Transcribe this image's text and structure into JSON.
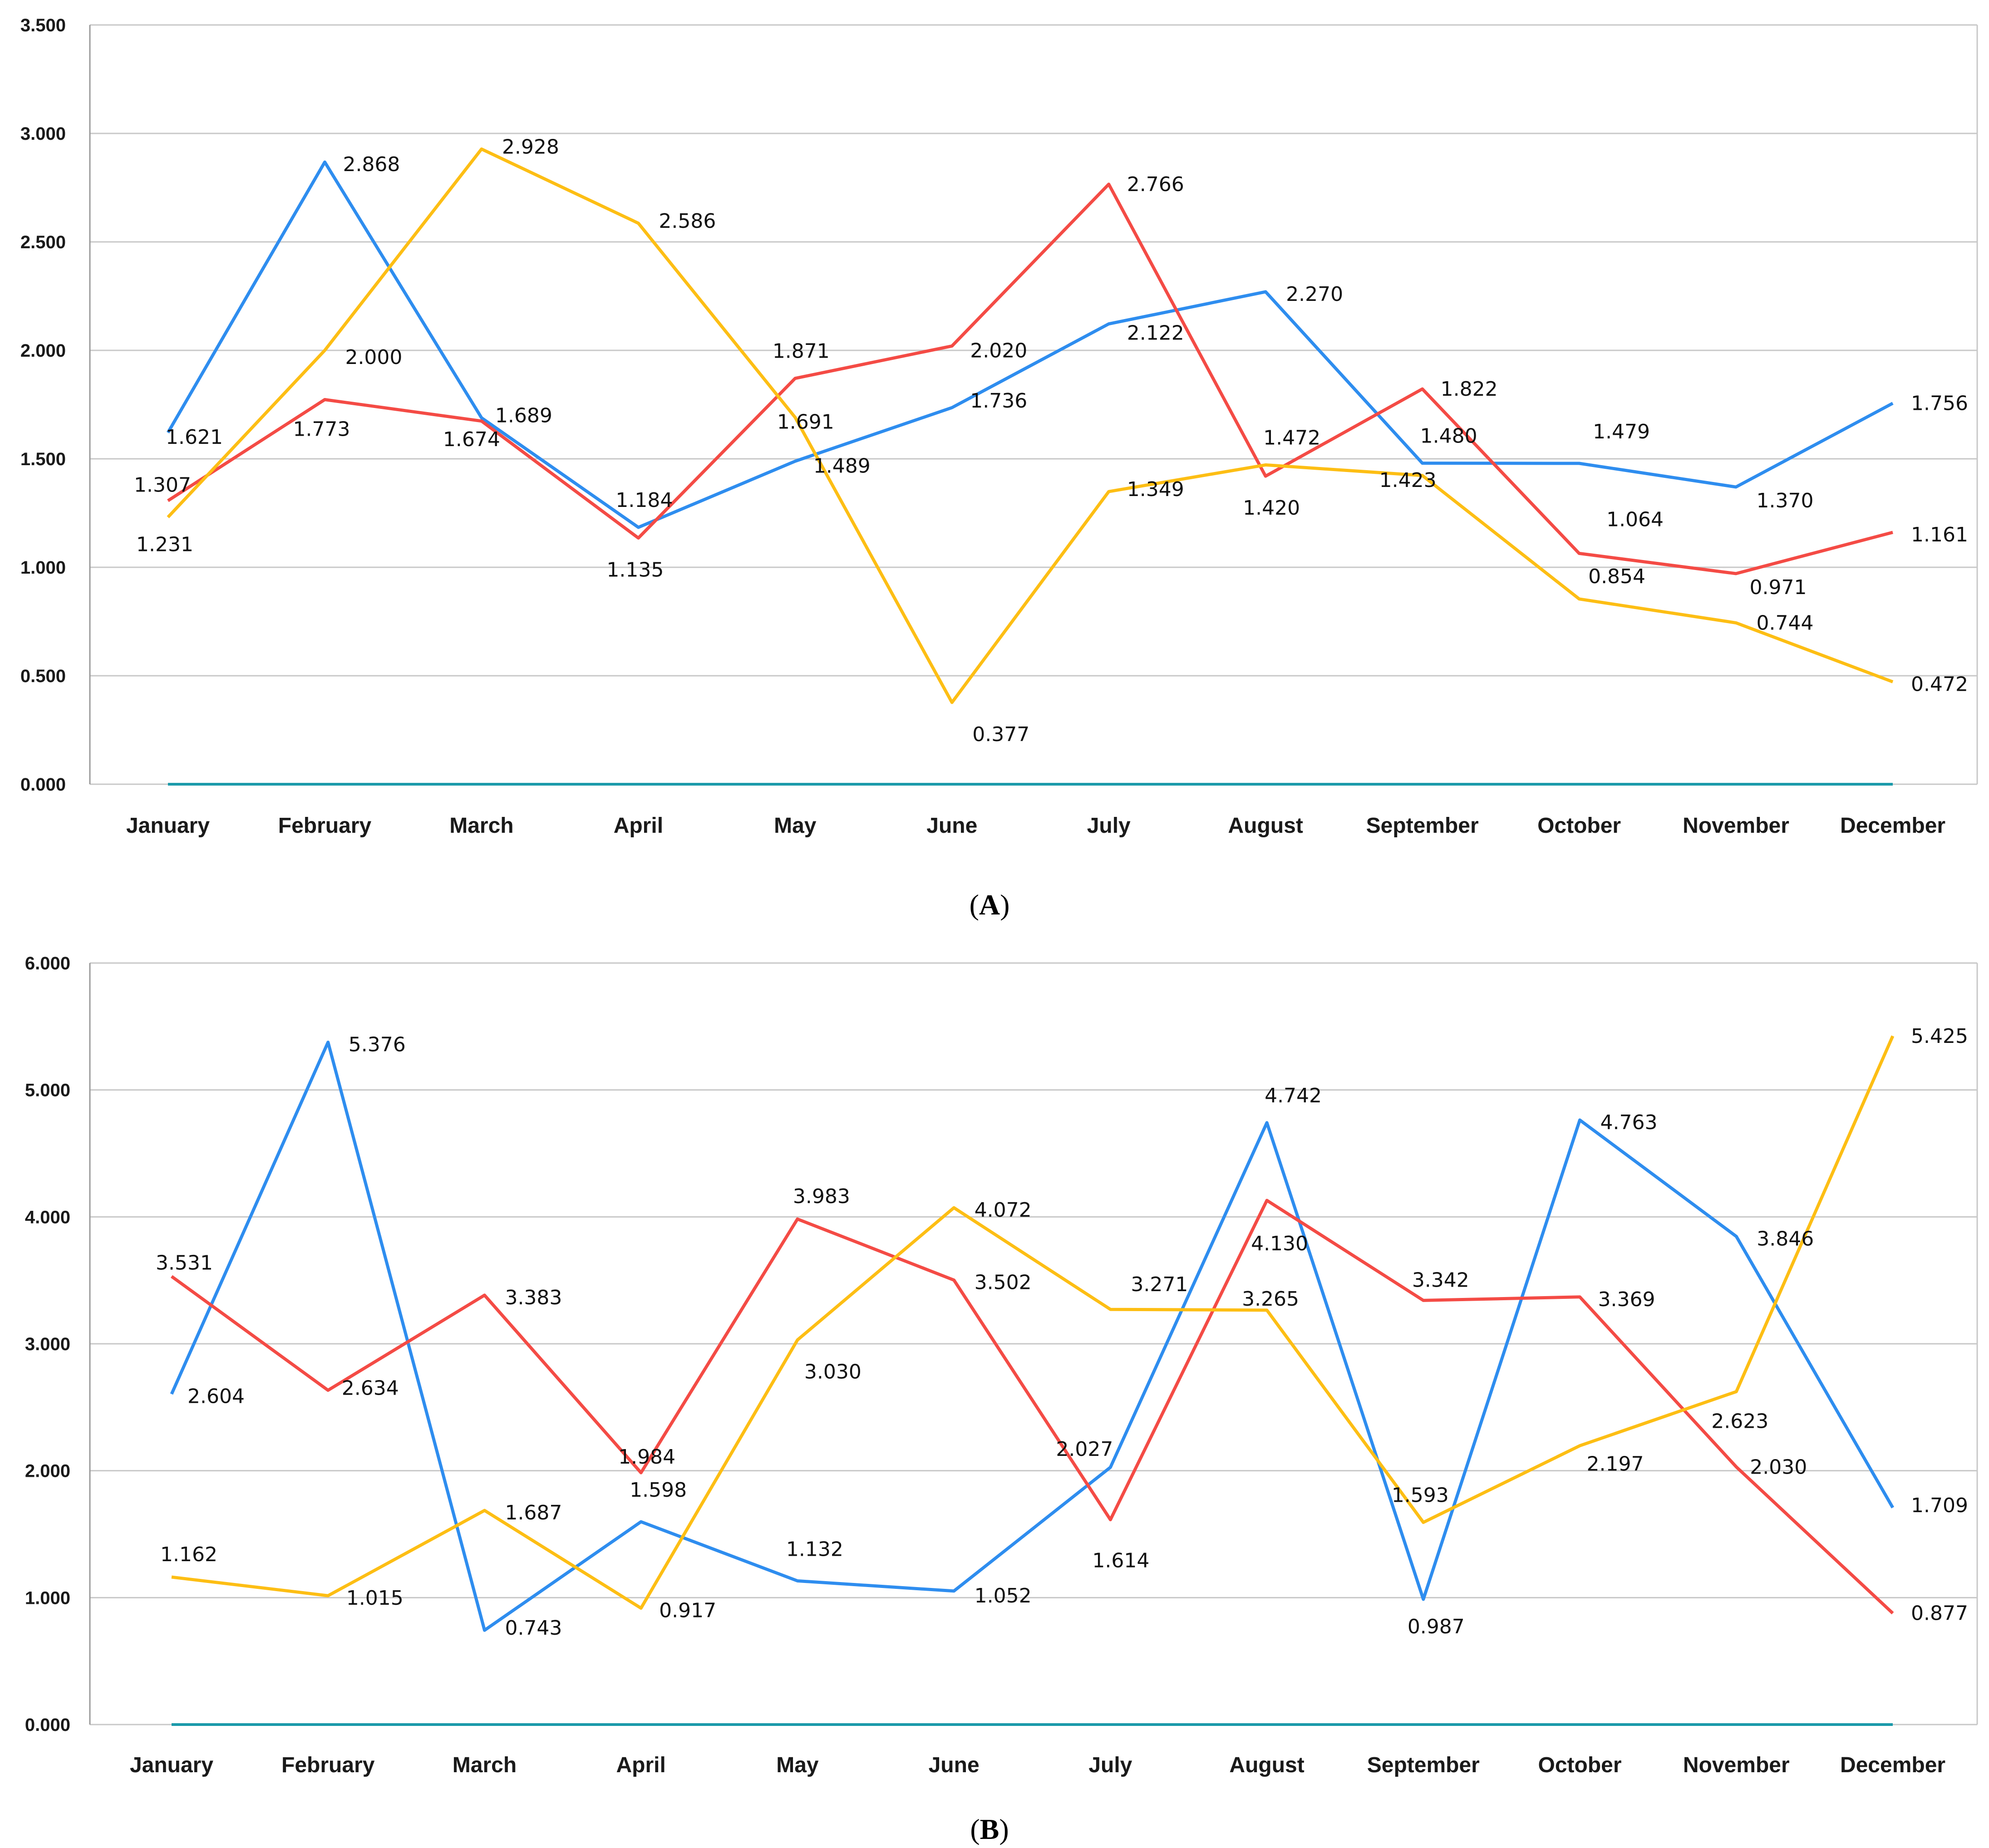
{
  "colors": {
    "blue": "#2E8DEF",
    "red": "#F44B45",
    "yellow": "#FDBE14",
    "baseline": "#1B9AAA",
    "grid": "#C8C8C8",
    "axis": "#9A9A9A"
  },
  "chart_data": [
    {
      "type": "line",
      "panel_label": "A",
      "categories": [
        "January",
        "February",
        "March",
        "April",
        "May",
        "June",
        "July",
        "August",
        "September",
        "October",
        "November",
        "December"
      ],
      "ylim": [
        0,
        3.5
      ],
      "yticks": [
        "0.000",
        "0.500",
        "1.000",
        "1.500",
        "2.000",
        "2.500",
        "3.000",
        "3.500"
      ],
      "grid": true,
      "series": [
        {
          "color_key": "blue",
          "values": [
            1.621,
            2.868,
            1.689,
            1.184,
            1.489,
            1.736,
            2.122,
            2.27,
            1.48,
            1.479,
            1.37,
            1.756
          ],
          "labels": [
            "1.621",
            "2.868",
            "1.689",
            "1.184",
            "1.489",
            "1.736",
            "2.122",
            "2.270",
            "1.480",
            "1.479",
            "1.370",
            "1.756"
          ]
        },
        {
          "color_key": "red",
          "values": [
            1.307,
            1.773,
            1.674,
            1.135,
            1.871,
            2.02,
            2.766,
            1.42,
            1.822,
            1.064,
            0.971,
            1.161
          ],
          "labels": [
            "1.307",
            "1.773",
            "1.674",
            "1.135",
            "1.871",
            "2.020",
            "2.766",
            "1.420",
            "1.822",
            "1.064",
            "0.971",
            "1.161"
          ]
        },
        {
          "color_key": "yellow",
          "values": [
            1.231,
            2.0,
            2.928,
            2.586,
            1.691,
            0.377,
            1.349,
            1.472,
            1.423,
            0.854,
            0.744,
            0.472
          ],
          "labels": [
            "1.231",
            "2.000",
            "2.928",
            "2.586",
            "1.691",
            "0.377",
            "1.349",
            "1.472",
            "1.423",
            "0.854",
            "0.744",
            "0.472"
          ]
        },
        {
          "color_key": "baseline",
          "values": [
            0,
            0,
            0,
            0,
            0,
            0,
            0,
            0,
            0,
            0,
            0,
            0
          ],
          "labels": []
        }
      ]
    },
    {
      "type": "line",
      "panel_label": "B",
      "categories": [
        "January",
        "February",
        "March",
        "April",
        "May",
        "June",
        "July",
        "August",
        "September",
        "October",
        "November",
        "December"
      ],
      "ylim": [
        0,
        6
      ],
      "yticks": [
        "0.000",
        "1.000",
        "2.000",
        "3.000",
        "4.000",
        "5.000",
        "6.000"
      ],
      "grid": true,
      "series": [
        {
          "color_key": "blue",
          "values": [
            2.604,
            5.376,
            0.743,
            1.598,
            1.132,
            1.052,
            2.027,
            4.742,
            0.987,
            4.763,
            3.846,
            1.709
          ],
          "labels": [
            "2.604",
            "5.376",
            "0.743",
            "1.598",
            "1.132",
            "1.052",
            "2.027",
            "4.742",
            "0.987",
            "4.763",
            "3.846",
            "1.709"
          ]
        },
        {
          "color_key": "red",
          "values": [
            3.531,
            2.634,
            3.383,
            1.984,
            3.983,
            3.502,
            1.614,
            4.13,
            3.342,
            3.369,
            2.03,
            0.877
          ],
          "labels": [
            "3.531",
            "2.634",
            "3.383",
            "1.984",
            "3.983",
            "3.502",
            "1.614",
            "4.130",
            "3.342",
            "3.369",
            "2.030",
            "0.877"
          ]
        },
        {
          "color_key": "yellow",
          "values": [
            1.162,
            1.015,
            1.687,
            0.917,
            3.03,
            4.072,
            3.271,
            3.265,
            1.593,
            2.197,
            2.623,
            5.425
          ],
          "labels": [
            "1.162",
            "1.015",
            "1.687",
            "0.917",
            "3.030",
            "4.072",
            "3.271",
            "3.265",
            "1.593",
            "2.197",
            "2.623",
            "5.425"
          ]
        },
        {
          "color_key": "baseline",
          "values": [
            0,
            0,
            0,
            0,
            0,
            0,
            0,
            0,
            0,
            0,
            0,
            0
          ],
          "labels": []
        }
      ]
    }
  ]
}
